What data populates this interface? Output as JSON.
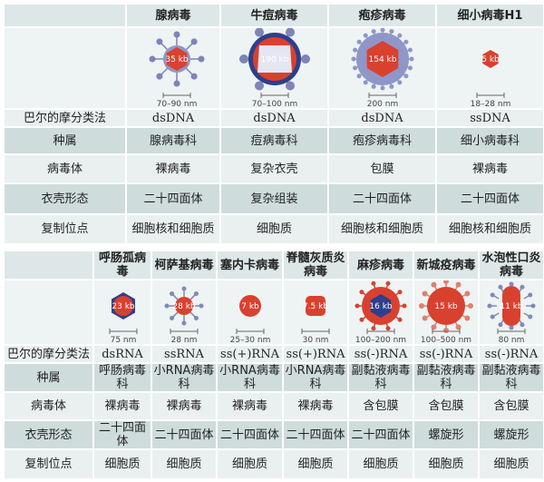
{
  "row_labels": [
    "巴尔的摩分类法",
    "种属",
    "病毒体",
    "衣壳形态",
    "复制位点"
  ],
  "dna_table": {
    "viruses": [
      {
        "name": "腺病毒",
        "genome": "35 kb",
        "size": "70–90 nm",
        "baltimore": "dsDNA",
        "family": "腺病毒科",
        "virion": "裸病毒",
        "capsid": "二十四面体",
        "site": "细胞核和细胞质"
      },
      {
        "name": "牛痘病毒",
        "genome": "190 kb",
        "size": "70–100 nm",
        "baltimore": "dsDNA",
        "family": "痘病毒科",
        "virion": "复杂衣壳",
        "capsid": "复杂组装",
        "site": "细胞质"
      },
      {
        "name": "疱疹病毒",
        "genome": "154 kb",
        "size": "200 nm",
        "baltimore": "dsDNA",
        "family": "疱疹病毒科",
        "virion": "包膜",
        "capsid": "二十四面体",
        "site": "细胞核和细胞质"
      },
      {
        "name": "细小病毒H1",
        "genome": "5 kb",
        "size": "18–28 nm",
        "baltimore": "ssDNA",
        "family": "细小病毒科",
        "virion": "裸病毒",
        "capsid": "二十四面体",
        "site": "细胞核和细胞质"
      }
    ]
  },
  "rna_table": {
    "viruses": [
      {
        "name": "呼肠孤病毒",
        "genome": "23 kb",
        "size": "75 nm",
        "baltimore": "dsRNA",
        "family": "呼肠病毒科",
        "virion": "裸病毒",
        "capsid": "二十四面体",
        "site": "细胞质"
      },
      {
        "name": "柯萨基病毒",
        "genome": "28 kb",
        "size": "28 nm",
        "baltimore": "ssRNA",
        "family": "小RNA病毒科",
        "virion": "裸病毒",
        "capsid": "二十四面体",
        "site": "细胞质"
      },
      {
        "name": "塞内卡病毒",
        "genome": "7 kb",
        "size": "25–30 nm",
        "baltimore": "ss(+)RNA",
        "family": "小RNA病毒科",
        "virion": "裸病毒",
        "capsid": "二十四面体",
        "site": "细胞质"
      },
      {
        "name": "脊髓灰质炎病毒",
        "genome": "7.5 kb",
        "size": "30 nm",
        "baltimore": "ss(+)RNA",
        "family": "小RNA病毒科",
        "virion": "裸病毒",
        "capsid": "二十四面体",
        "site": "细胞质"
      },
      {
        "name": "麻疹病毒",
        "genome": "16 kb",
        "size": "100–200 nm",
        "baltimore": "ss(-)RNA",
        "family": "副黏液病毒科",
        "virion": "含包膜",
        "capsid": "二十四面体",
        "site": "细胞质"
      },
      {
        "name": "新城疫病毒",
        "genome": "15 kb",
        "size": "100–500 nm",
        "baltimore": "ss(-)RNA",
        "family": "副黏液病毒科",
        "virion": "含包膜",
        "capsid": "螺旋形",
        "site": "细胞质"
      },
      {
        "name": "水泡性口炎病毒",
        "genome": "11 kb",
        "size": "80 nm",
        "baltimore": "ss(-)RNA",
        "family": "副黏液病毒科",
        "virion": "含包膜",
        "capsid": "螺旋形",
        "site": "细胞质"
      }
    ]
  },
  "colors": {
    "capsid_red": "#d9412f",
    "envelope_blue": "#8f96c8",
    "dark_blue": "#2d3f8c",
    "row_light": "#eaf0f0",
    "row_dark": "#cfdcdc"
  }
}
